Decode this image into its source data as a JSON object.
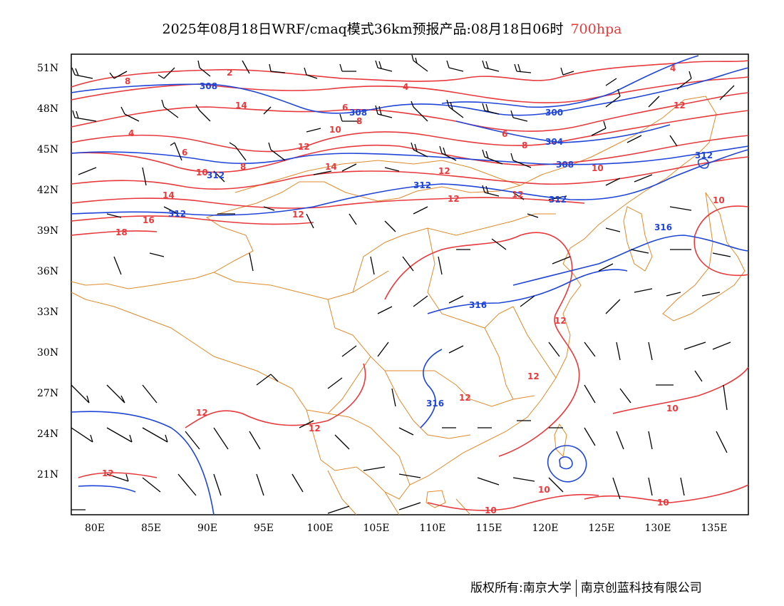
{
  "title": {
    "main": "2025年08月18日WRF/cmaq模式36km预报产品:08月18日06时",
    "level": "700hpa"
  },
  "axes": {
    "lat_labels": [
      "51N",
      "48N",
      "45N",
      "42N",
      "39N",
      "36N",
      "33N",
      "30N",
      "27N",
      "24N",
      "21N"
    ],
    "lon_labels": [
      "80E",
      "85E",
      "90E",
      "95E",
      "100E",
      "105E",
      "110E",
      "115E",
      "120E",
      "125E",
      "130E",
      "135E"
    ]
  },
  "contour_labels": {
    "geopotential": [
      "308",
      "308",
      "300",
      "304",
      "308",
      "312",
      "312",
      "312",
      "312",
      "316",
      "312",
      "316",
      "316"
    ],
    "temperature": [
      "2",
      "4",
      "8",
      "14",
      "6",
      "8",
      "10",
      "4",
      "6",
      "6",
      "8",
      "12",
      "8",
      "12",
      "14",
      "12",
      "4",
      "10",
      "12",
      "16",
      "14",
      "18",
      "12",
      "12",
      "12",
      "12",
      "12",
      "10",
      "12",
      "12",
      "10",
      "10",
      "10",
      "10",
      "10",
      "12"
    ]
  },
  "colors": {
    "geopotential_contour": "#1f45d8",
    "temperature_contour": "#e8393c",
    "boundary": "#e08a2c",
    "wind_barb": "#000000"
  },
  "footer": {
    "left": "版权所有:南京大学",
    "right": "南京创蓝科技有限公司"
  }
}
